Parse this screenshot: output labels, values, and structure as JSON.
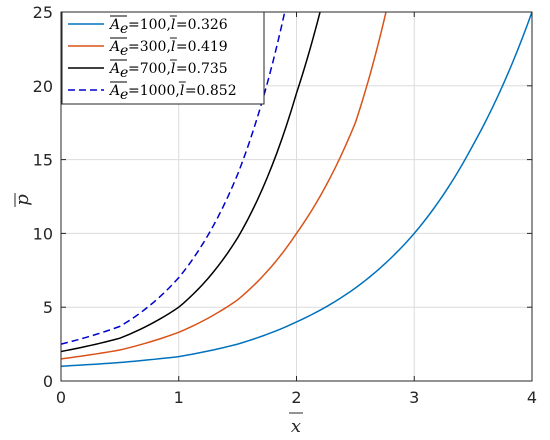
{
  "chart_data": {
    "type": "line",
    "xlabel": "x",
    "ylabel": "p",
    "xlim": [
      0,
      4
    ],
    "ylim": [
      0,
      25
    ],
    "xticks": [
      "0",
      "1",
      "2",
      "3",
      "4"
    ],
    "yticks": [
      "0",
      "5",
      "10",
      "15",
      "20",
      "25"
    ],
    "grid": true,
    "legend_position": "top-left",
    "series": [
      {
        "name": "Ae=100, l=0.326",
        "legend_ae": "100",
        "legend_l": "0.326",
        "color": "#0072BD",
        "dash": "solid",
        "x": [
          0,
          0.5,
          1,
          1.5,
          2,
          2.5,
          3,
          3.5,
          4
        ],
        "y": [
          1.0,
          1.25,
          1.65,
          2.5,
          4.0,
          6.3,
          10.0,
          16.0,
          25.0
        ]
      },
      {
        "name": "Ae=300, l=0.419",
        "legend_ae": "300",
        "legend_l": "0.419",
        "color": "#D95319",
        "dash": "solid",
        "x": [
          0,
          0.5,
          1,
          1.5,
          2,
          2.5,
          2.76
        ],
        "y": [
          1.5,
          2.1,
          3.3,
          5.5,
          10.0,
          17.5,
          25.0
        ]
      },
      {
        "name": "Ae=700, l=0.735",
        "legend_ae": "700",
        "legend_l": "0.735",
        "color": "#000000",
        "dash": "solid",
        "x": [
          0,
          0.5,
          1,
          1.5,
          2,
          2.2
        ],
        "y": [
          2.0,
          2.9,
          5.0,
          9.7,
          19.5,
          25.0
        ]
      },
      {
        "name": "Ae=1000, l=0.852",
        "legend_ae": "1000",
        "legend_l": "0.852",
        "color": "#0000CC",
        "dash": "dashed",
        "x": [
          0,
          0.5,
          1,
          1.5,
          1.9
        ],
        "y": [
          2.5,
          3.7,
          7.0,
          14.0,
          25.0
        ]
      }
    ]
  }
}
